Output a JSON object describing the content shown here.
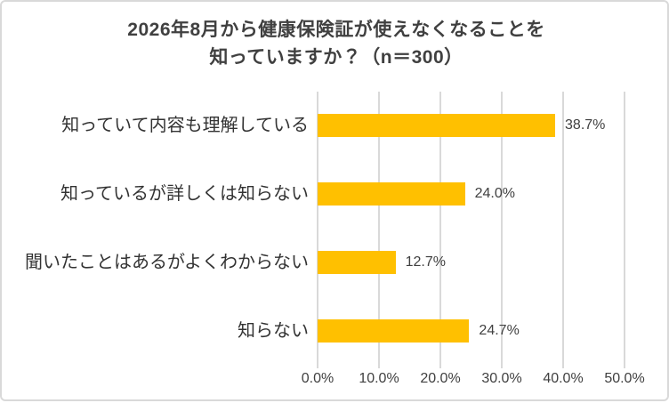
{
  "chart_data": {
    "type": "bar",
    "orientation": "horizontal",
    "title": "2026年8月から健康保険証が使えなくなることを知っていますか？（n＝300）",
    "title_lines": [
      "2026年8月から健康保険証が使えなくなることを",
      "知っていますか？（n＝300）"
    ],
    "sample_size": 300,
    "categories": [
      "知っていて内容も理解している",
      "知っているが詳しくは知らない",
      "聞いたことはあるがよくわからない",
      "知らない"
    ],
    "values": [
      38.7,
      24.0,
      12.7,
      24.7
    ],
    "value_labels": [
      "38.7%",
      "24.0%",
      "12.7%",
      "24.7%"
    ],
    "x_axis": {
      "min": 0,
      "max": 50,
      "ticks": [
        0,
        10,
        20,
        30,
        40,
        50
      ],
      "tick_labels": [
        "0.0%",
        "10.0%",
        "20.0%",
        "30.0%",
        "40.0%",
        "50.0%"
      ]
    },
    "grid": true,
    "legend": false
  },
  "colors": {
    "bar": "#FFC000",
    "gridline": "#D9D9D9",
    "border": "#D9D9D9",
    "background": "#FFFFFF",
    "title_text": "#404040",
    "category_text": "#333333",
    "label_text": "#404040"
  }
}
